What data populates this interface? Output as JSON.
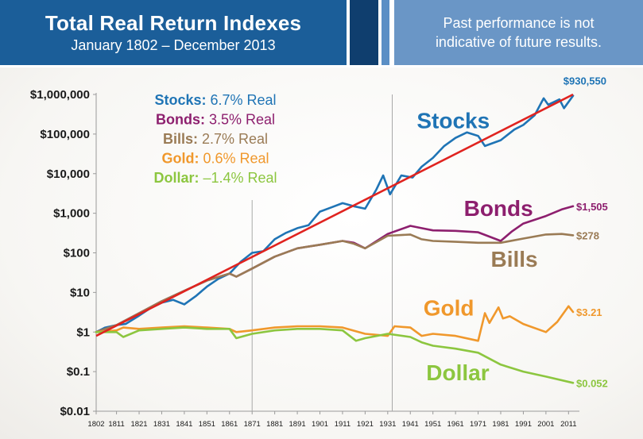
{
  "header": {
    "title": "Total Real Return Indexes",
    "subtitle": "January 1802 – December 2013",
    "disclaimer_line1": "Past performance is not",
    "disclaimer_line2": "indicative of future results."
  },
  "chart_data": {
    "type": "line",
    "y_scale": "log",
    "ylim": [
      0.01,
      1000000
    ],
    "xlim": [
      1802,
      2013
    ],
    "y_ticks": [
      {
        "value": 1000000,
        "label": "$1,000,000"
      },
      {
        "value": 100000,
        "label": "$100,000"
      },
      {
        "value": 10000,
        "label": "$10,000"
      },
      {
        "value": 1000,
        "label": "$1,000"
      },
      {
        "value": 100,
        "label": "$100"
      },
      {
        "value": 10,
        "label": "$10"
      },
      {
        "value": 1,
        "label": "$1"
      },
      {
        "value": 0.1,
        "label": "$0.1"
      },
      {
        "value": 0.01,
        "label": "$0.01"
      }
    ],
    "x_ticks": [
      1802,
      1811,
      1821,
      1831,
      1841,
      1851,
      1861,
      1871,
      1881,
      1891,
      1901,
      1911,
      1921,
      1931,
      1941,
      1951,
      1961,
      1971,
      1981,
      1991,
      2001,
      2011
    ],
    "vertical_lines": [
      1871,
      1933
    ],
    "legend": [
      {
        "name": "Stocks:",
        "value": "6.7% Real",
        "color": "#1f74b5"
      },
      {
        "name": "Bonds:",
        "value": "3.5% Real",
        "color": "#8d1f6e"
      },
      {
        "name": "Bills:",
        "value": "2.7% Real",
        "color": "#9a7b55"
      },
      {
        "name": "Gold:",
        "value": "0.6% Real",
        "color": "#f0982c"
      },
      {
        "name": "Dollar:",
        "value": "–1.4% Real",
        "color": "#8cc63f"
      }
    ],
    "trend_line": {
      "color": "#e0231f",
      "x": [
        1802,
        2013
      ],
      "y": [
        0.8,
        1000000
      ]
    },
    "series": [
      {
        "name": "Stocks",
        "color": "#1f74b5",
        "end_label": "$930,550",
        "x": [
          1802,
          1806,
          1811,
          1815,
          1821,
          1826,
          1831,
          1836,
          1841,
          1846,
          1851,
          1856,
          1861,
          1866,
          1871,
          1876,
          1881,
          1886,
          1891,
          1896,
          1901,
          1906,
          1911,
          1916,
          1921,
          1926,
          1929,
          1932,
          1937,
          1942,
          1946,
          1951,
          1956,
          1961,
          1966,
          1971,
          1974,
          1981,
          1987,
          1991,
          1996,
          2000,
          2002,
          2007,
          2009,
          2013
        ],
        "y": [
          1,
          1.3,
          1.5,
          1.6,
          2.6,
          4,
          5.5,
          6.5,
          5,
          8,
          14,
          22,
          30,
          60,
          100,
          110,
          220,
          320,
          420,
          500,
          1100,
          1400,
          1800,
          1500,
          1300,
          4000,
          9000,
          3000,
          9000,
          8000,
          15000,
          25000,
          50000,
          80000,
          110000,
          90000,
          50000,
          70000,
          130000,
          170000,
          300000,
          800000,
          550000,
          750000,
          450000,
          930550
        ]
      },
      {
        "name": "Bonds",
        "color": "#8d1f6e",
        "end_label": "$1,505",
        "x": [
          1802,
          1811,
          1821,
          1831,
          1841,
          1851,
          1861,
          1864,
          1871,
          1881,
          1891,
          1901,
          1911,
          1916,
          1921,
          1931,
          1941,
          1946,
          1951,
          1961,
          1971,
          1981,
          1986,
          1991,
          2001,
          2008,
          2013
        ],
        "y": [
          1,
          1.5,
          3,
          6,
          11,
          20,
          30,
          25,
          40,
          80,
          130,
          160,
          200,
          180,
          130,
          300,
          480,
          420,
          370,
          360,
          330,
          200,
          350,
          550,
          850,
          1250,
          1505
        ]
      },
      {
        "name": "Bills",
        "color": "#9a7b55",
        "end_label": "$278",
        "x": [
          1802,
          1811,
          1821,
          1831,
          1841,
          1851,
          1861,
          1864,
          1871,
          1881,
          1891,
          1901,
          1911,
          1916,
          1921,
          1931,
          1941,
          1946,
          1951,
          1961,
          1971,
          1981,
          1991,
          2001,
          2008,
          2013
        ],
        "y": [
          1,
          1.5,
          3,
          6,
          11,
          20,
          30,
          25,
          40,
          80,
          130,
          160,
          200,
          170,
          130,
          270,
          290,
          220,
          200,
          190,
          180,
          180,
          230,
          290,
          300,
          278
        ]
      },
      {
        "name": "Gold",
        "color": "#f0982c",
        "end_label": "$3.21",
        "x": [
          1802,
          1811,
          1814,
          1821,
          1831,
          1841,
          1851,
          1861,
          1864,
          1871,
          1881,
          1891,
          1901,
          1911,
          1921,
          1931,
          1934,
          1941,
          1946,
          1951,
          1961,
          1971,
          1974,
          1976,
          1980,
          1982,
          1985,
          1991,
          2001,
          2006,
          2011,
          2013
        ],
        "y": [
          1,
          1.1,
          1.3,
          1.2,
          1.3,
          1.4,
          1.3,
          1.2,
          1.0,
          1.1,
          1.3,
          1.4,
          1.4,
          1.3,
          0.9,
          0.8,
          1.4,
          1.3,
          0.8,
          0.9,
          0.8,
          0.6,
          3.0,
          1.7,
          4.2,
          2.2,
          2.5,
          1.6,
          1.0,
          1.8,
          4.5,
          3.21
        ]
      },
      {
        "name": "Dollar",
        "color": "#8cc63f",
        "end_label": "$0.052",
        "x": [
          1802,
          1811,
          1814,
          1821,
          1831,
          1841,
          1851,
          1861,
          1864,
          1871,
          1881,
          1891,
          1901,
          1911,
          1917,
          1921,
          1931,
          1941,
          1946,
          1951,
          1961,
          1971,
          1981,
          1991,
          2001,
          2013
        ],
        "y": [
          1,
          1.0,
          0.75,
          1.1,
          1.2,
          1.3,
          1.2,
          1.2,
          0.7,
          0.9,
          1.1,
          1.2,
          1.2,
          1.1,
          0.6,
          0.7,
          0.9,
          0.75,
          0.55,
          0.45,
          0.38,
          0.3,
          0.15,
          0.1,
          0.075,
          0.052
        ]
      }
    ],
    "series_labels": [
      {
        "text": "Stocks",
        "color": "#1f74b5",
        "x": 1960,
        "y": 140000
      },
      {
        "text": "Bonds",
        "color": "#8d1f6e",
        "x": 1980,
        "y": 850
      },
      {
        "text": "Bills",
        "color": "#9a7b55",
        "x": 1987,
        "y": 45
      },
      {
        "text": "Gold",
        "color": "#f0982c",
        "x": 1958,
        "y": 2.6
      },
      {
        "text": "Dollar",
        "color": "#8cc63f",
        "x": 1962,
        "y": 0.06
      }
    ]
  }
}
